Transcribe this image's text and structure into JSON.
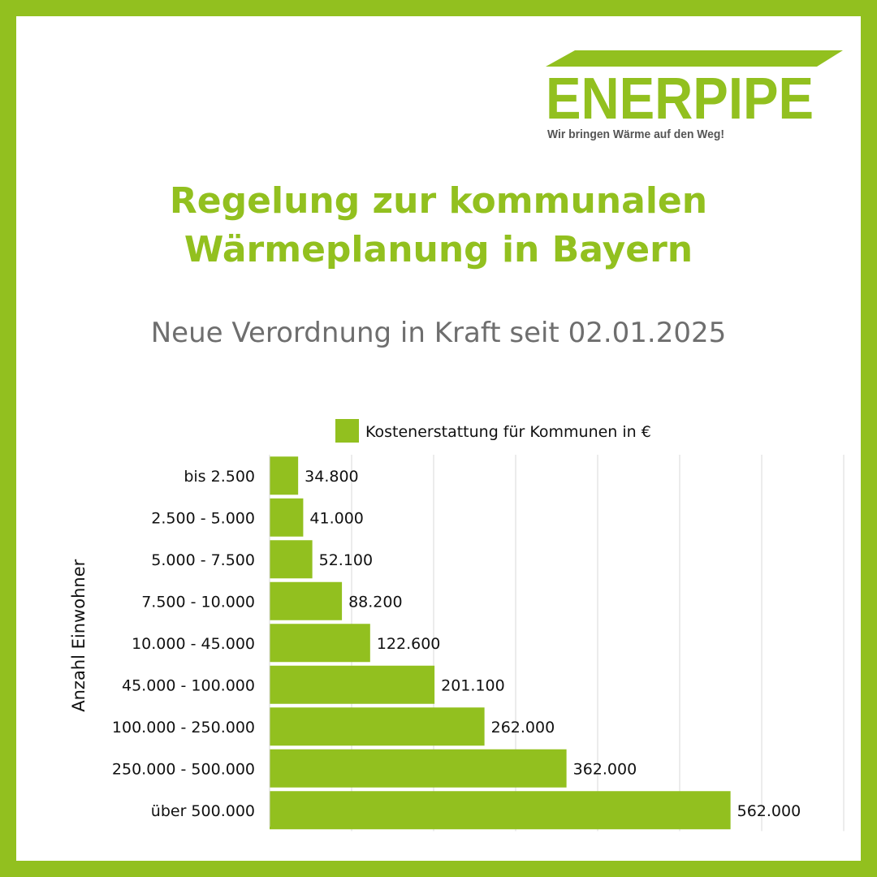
{
  "logo": {
    "name": "ENERPIPE",
    "slogan": "Wir bringen Wärme auf den Weg!"
  },
  "title_line1": "Regelung zur kommunalen",
  "title_line2": "Wärmeplanung in Bayern",
  "subtitle": "Neue Verordnung in Kraft seit 02.01.2025",
  "colors": {
    "accent": "#92c01f",
    "text": "#111111",
    "subtitle": "#6e6e6e",
    "grid": "#d9d9d9"
  },
  "chart_data": {
    "type": "bar",
    "orientation": "horizontal",
    "categories": [
      "bis 2.500",
      "2.500 - 5.000",
      "5.000 - 7.500",
      "7.500 - 10.000",
      "10.000 - 45.000",
      "45.000 - 100.000",
      "100.000 - 250.000",
      "250.000 - 500.000",
      "über 500.000"
    ],
    "series": [
      {
        "name": "Kostenerstattung für Kommunen in €",
        "values": [
          34800,
          41000,
          52100,
          88200,
          122600,
          201100,
          262000,
          362000,
          562000
        ],
        "labels": [
          "34.800",
          "41.000",
          "52.100",
          "88.200",
          "122.600",
          "201.100",
          "262.000",
          "362.000",
          "562.000"
        ]
      }
    ],
    "ylabel": "Anzahl Einwohner",
    "xlim": [
      0,
      700000
    ],
    "grid": true,
    "legend_position": "top"
  }
}
